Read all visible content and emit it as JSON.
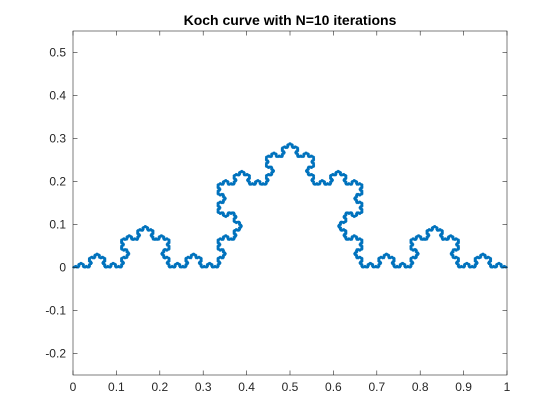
{
  "chart_data": {
    "type": "line",
    "title": "Koch curve with N=10 iterations",
    "xlabel": "",
    "ylabel": "",
    "xlim": [
      0,
      1
    ],
    "ylim": [
      -0.25,
      0.55
    ],
    "x_ticks": [
      0,
      0.1,
      0.2,
      0.3,
      0.4,
      0.5,
      0.6,
      0.7,
      0.8,
      0.9,
      1
    ],
    "x_tick_labels": [
      "0",
      "0.1",
      "0.2",
      "0.3",
      "0.4",
      "0.5",
      "0.6",
      "0.7",
      "0.8",
      "0.9",
      "1"
    ],
    "y_ticks": [
      -0.2,
      -0.1,
      0,
      0.1,
      0.2,
      0.3,
      0.4,
      0.5
    ],
    "y_tick_labels": [
      "-0.2",
      "-0.1",
      "0",
      "0.1",
      "0.2",
      "0.3",
      "0.4",
      "0.5"
    ],
    "grid": false,
    "series": [
      {
        "iterations": 10,
        "start": [
          0,
          0
        ],
        "end": [
          1,
          0
        ],
        "color": "#0072BD"
      }
    ]
  }
}
